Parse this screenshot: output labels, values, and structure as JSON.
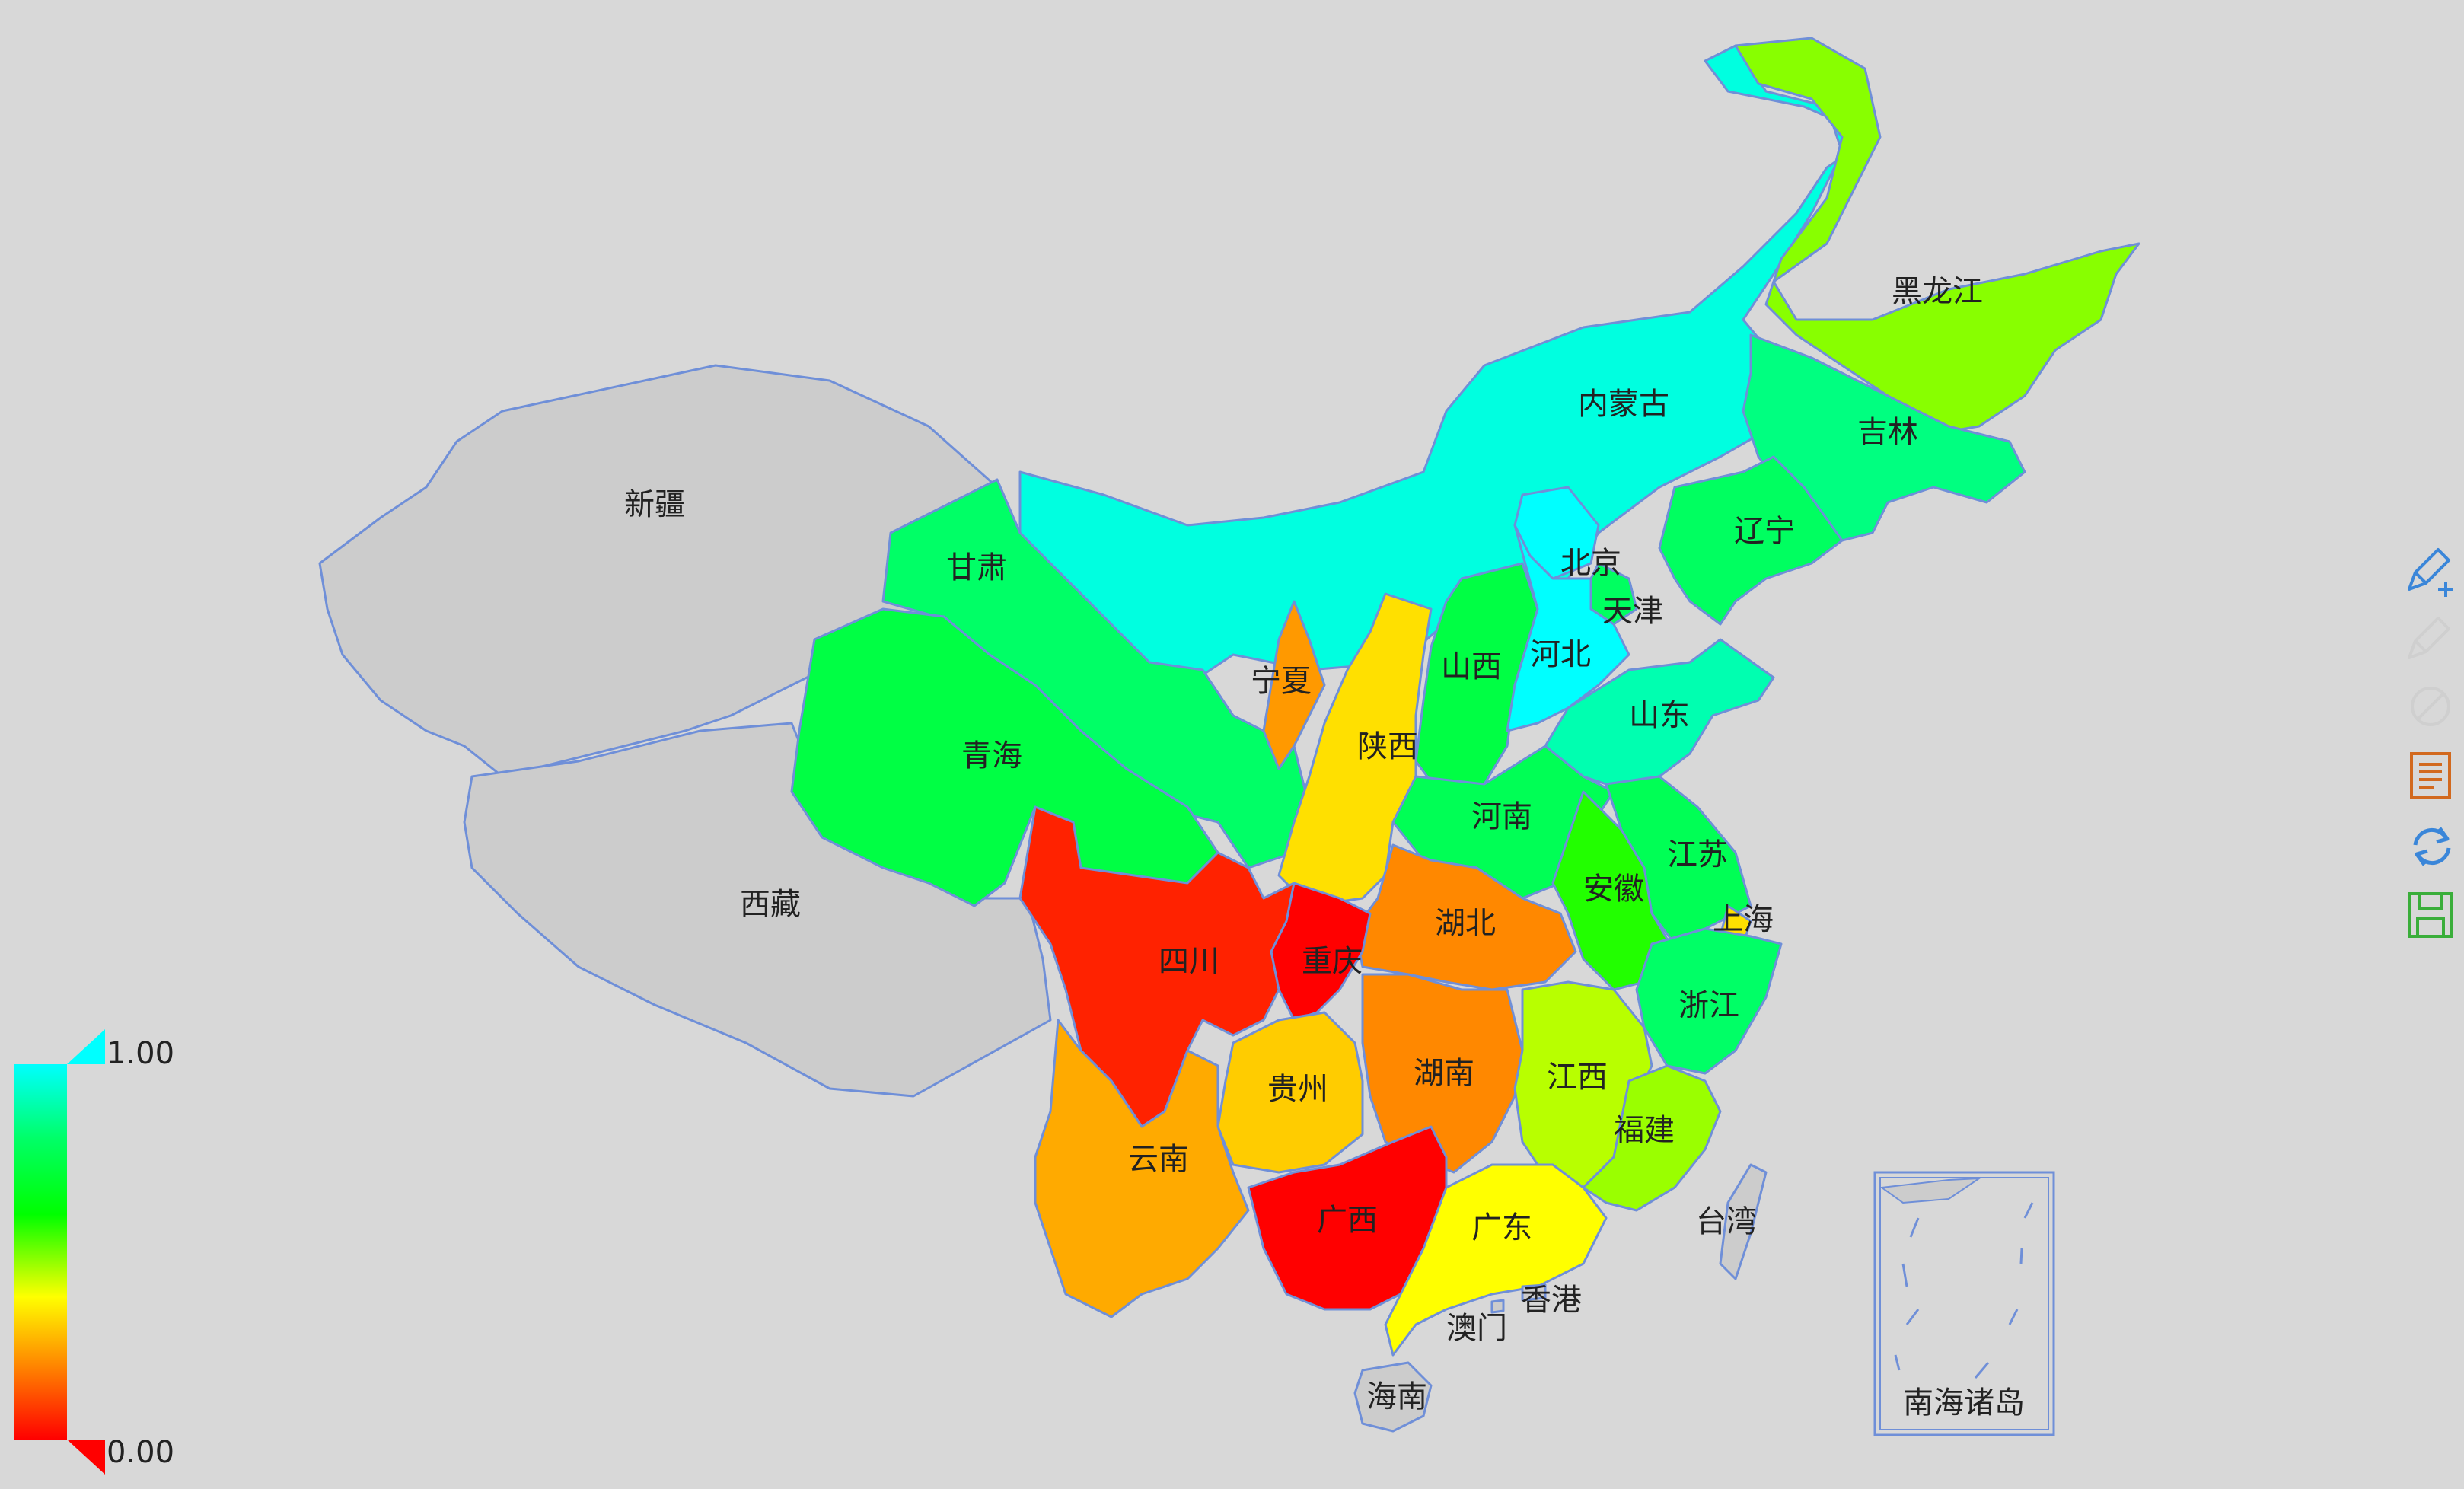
{
  "map": {
    "regions": [
      {
        "id": "xinjiang",
        "name": "新疆",
        "value": null,
        "color": "#cccccc"
      },
      {
        "id": "xizang",
        "name": "西藏",
        "value": null,
        "color": "#cccccc"
      },
      {
        "id": "neimenggu",
        "name": "内蒙古",
        "value": 0.95,
        "color": "#00ffe0"
      },
      {
        "id": "heilongjiang",
        "name": "黑龙江",
        "value": 0.55,
        "color": "#88ff00"
      },
      {
        "id": "jilin",
        "name": "吉林",
        "value": 0.75,
        "color": "#00ff80"
      },
      {
        "id": "liaoning",
        "name": "辽宁",
        "value": 0.72,
        "color": "#00ff60"
      },
      {
        "id": "gansu",
        "name": "甘肃",
        "value": 0.74,
        "color": "#00ff66"
      },
      {
        "id": "qinghai",
        "name": "青海",
        "value": 0.7,
        "color": "#00ff44"
      },
      {
        "id": "ningxia",
        "name": "宁夏",
        "value": 0.2,
        "color": "#ff9900"
      },
      {
        "id": "shaanxi",
        "name": "陕西",
        "value": 0.4,
        "color": "#ffe000"
      },
      {
        "id": "shanxi",
        "name": "山西",
        "value": 0.7,
        "color": "#00ff44"
      },
      {
        "id": "beijing",
        "name": "北京",
        "value": 1.0,
        "color": "#00ffff"
      },
      {
        "id": "tianjin",
        "name": "天津",
        "value": 0.72,
        "color": "#00ff60"
      },
      {
        "id": "hebei",
        "name": "河北",
        "value": 1.0,
        "color": "#00ffff"
      },
      {
        "id": "shandong",
        "name": "山东",
        "value": 0.85,
        "color": "#00ffb0"
      },
      {
        "id": "henan",
        "name": "河南",
        "value": 0.72,
        "color": "#00ff55"
      },
      {
        "id": "jiangsu",
        "name": "江苏",
        "value": 0.72,
        "color": "#00ff55"
      },
      {
        "id": "anhui",
        "name": "安徽",
        "value": 0.62,
        "color": "#22ff00"
      },
      {
        "id": "shanghai",
        "name": "上海",
        "value": 0.38,
        "color": "#ffe000"
      },
      {
        "id": "zhejiang",
        "name": "浙江",
        "value": 0.74,
        "color": "#00ff66"
      },
      {
        "id": "hubei",
        "name": "湖北",
        "value": 0.2,
        "color": "#ff8800"
      },
      {
        "id": "sichuan",
        "name": "四川",
        "value": 0.05,
        "color": "#ff2200"
      },
      {
        "id": "chongqing",
        "name": "重庆",
        "value": 0.0,
        "color": "#ff0000"
      },
      {
        "id": "guizhou",
        "name": "贵州",
        "value": 0.32,
        "color": "#ffcc00"
      },
      {
        "id": "hunan",
        "name": "湖南",
        "value": 0.2,
        "color": "#ff8800"
      },
      {
        "id": "jiangxi",
        "name": "江西",
        "value": 0.5,
        "color": "#b8ff00"
      },
      {
        "id": "fujian",
        "name": "福建",
        "value": 0.54,
        "color": "#9aff00"
      },
      {
        "id": "yunnan",
        "name": "云南",
        "value": 0.22,
        "color": "#ffaa00"
      },
      {
        "id": "guangxi",
        "name": "广西",
        "value": 0.0,
        "color": "#ff0000"
      },
      {
        "id": "guangdong",
        "name": "广东",
        "value": 0.42,
        "color": "#ffff00"
      },
      {
        "id": "hainan",
        "name": "海南",
        "value": null,
        "color": "#cccccc"
      },
      {
        "id": "taiwan",
        "name": "台湾",
        "value": null,
        "color": "#cccccc"
      },
      {
        "id": "xianggang",
        "name": "香港",
        "value": null,
        "color": "#cccccc"
      },
      {
        "id": "aomen",
        "name": "澳门",
        "value": null,
        "color": "#cccccc"
      }
    ],
    "inset_label": "南海诸岛"
  },
  "legend": {
    "max_label": "1.00",
    "min_label": "0.00",
    "gradient": [
      "#00ffff",
      "#00ff66",
      "#00ff00",
      "#ffff00",
      "#ff8800",
      "#ff0000"
    ]
  },
  "toolbox": [
    {
      "id": "add-icon",
      "color": "#3a86d9"
    },
    {
      "id": "edit-icon",
      "color": "#cfcfcf"
    },
    {
      "id": "clear-icon",
      "color": "#cfcfcf"
    },
    {
      "id": "data-view-icon",
      "color": "#d2691e"
    },
    {
      "id": "restore-icon",
      "color": "#3a86d9"
    },
    {
      "id": "save-icon",
      "color": "#3aae3a"
    }
  ]
}
